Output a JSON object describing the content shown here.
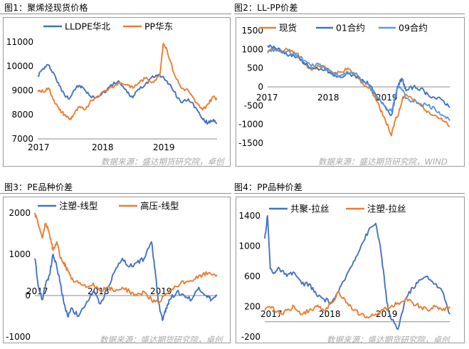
{
  "panels": [
    {
      "title": "图1：聚烯烃现货价格",
      "source": "数据来源：盛达期货研究院，卓创",
      "chart_data": {
        "type": "line",
        "title": "",
        "xlabel": "",
        "ylabel": "",
        "ylim": [
          7000,
          11000
        ],
        "yticks": [
          7000,
          8000,
          9000,
          10000,
          11000
        ],
        "xticks": [
          "2017",
          "2018",
          "2019"
        ],
        "legend_position": "top",
        "grid": false,
        "series": [
          {
            "name": "LLDPE华北",
            "color": "#4472C4",
            "x": [
              0,
              0.03,
              0.06,
              0.09,
              0.12,
              0.15,
              0.18,
              0.2,
              0.23,
              0.26,
              0.3,
              0.35,
              0.4,
              0.45,
              0.5,
              0.53,
              0.56,
              0.6,
              0.64,
              0.68,
              0.72,
              0.76,
              0.8,
              0.84,
              0.88,
              0.92,
              0.95,
              0.98,
              1.0
            ],
            "values": [
              9600,
              9900,
              10050,
              9700,
              9200,
              8800,
              8700,
              9000,
              9200,
              9050,
              8700,
              8800,
              9150,
              9400,
              8900,
              8700,
              9050,
              9250,
              9600,
              9650,
              9400,
              8950,
              8500,
              8650,
              8300,
              7800,
              7650,
              7800,
              7650
            ]
          },
          {
            "name": "PP华东",
            "color": "#ED7D31",
            "x": [
              0,
              0.03,
              0.06,
              0.09,
              0.12,
              0.15,
              0.18,
              0.2,
              0.23,
              0.26,
              0.3,
              0.35,
              0.4,
              0.45,
              0.5,
              0.53,
              0.56,
              0.6,
              0.64,
              0.68,
              0.7,
              0.72,
              0.76,
              0.8,
              0.84,
              0.88,
              0.92,
              0.95,
              0.98,
              1.0
            ],
            "values": [
              9000,
              8950,
              9100,
              8600,
              8200,
              8000,
              7800,
              8000,
              8300,
              8200,
              8600,
              8850,
              9100,
              9300,
              9250,
              9100,
              9300,
              9500,
              9350,
              9600,
              10950,
              10700,
              9700,
              9100,
              9000,
              8500,
              8200,
              8450,
              8750,
              8650
            ]
          }
        ]
      }
    },
    {
      "title": "图2：LL-PP价差",
      "source": "数据来源：盛达期货研究院，WIND",
      "chart_data": {
        "type": "line",
        "title": "",
        "xlabel": "",
        "ylabel": "",
        "ylim": [
          -1500,
          1500
        ],
        "yticks": [
          -1500,
          -1000,
          -500,
          0,
          500,
          1000,
          1500
        ],
        "xticks": [
          "2017",
          "2018",
          "2019"
        ],
        "legend_position": "top",
        "grid": false,
        "series": [
          {
            "name": "现货",
            "color": "#ED7D31",
            "x": [
              0,
              0.04,
              0.08,
              0.12,
              0.16,
              0.2,
              0.24,
              0.28,
              0.32,
              0.36,
              0.4,
              0.44,
              0.48,
              0.52,
              0.56,
              0.6,
              0.64,
              0.68,
              0.7,
              0.72,
              0.74,
              0.76,
              0.8,
              0.84,
              0.88,
              0.92,
              0.96,
              1.0
            ],
            "values": [
              900,
              1050,
              950,
              1000,
              900,
              600,
              450,
              550,
              500,
              350,
              400,
              500,
              300,
              100,
              0,
              -400,
              -800,
              -1300,
              -900,
              -700,
              -300,
              -200,
              -350,
              -500,
              -650,
              -750,
              -900,
              -1050
            ]
          },
          {
            "name": "01合约",
            "color": "#4472C4",
            "x": [
              0,
              0.04,
              0.08,
              0.12,
              0.16,
              0.2,
              0.24,
              0.28,
              0.32,
              0.36,
              0.4,
              0.44,
              0.48,
              0.52,
              0.56,
              0.6,
              0.64,
              0.68,
              0.7,
              0.72,
              0.74,
              0.76,
              0.8,
              0.84,
              0.88,
              0.92,
              0.96,
              1.0
            ],
            "values": [
              1100,
              1050,
              950,
              850,
              800,
              650,
              500,
              450,
              450,
              300,
              250,
              350,
              300,
              200,
              50,
              -300,
              -500,
              -750,
              -300,
              100,
              200,
              -100,
              0,
              -50,
              -200,
              -300,
              -350,
              -550
            ]
          },
          {
            "name": "09合约",
            "color": "#5B9BD5",
            "x": [
              0,
              0.04,
              0.08,
              0.12,
              0.16,
              0.2,
              0.24,
              0.28,
              0.32,
              0.36,
              0.4,
              0.44,
              0.48,
              0.52,
              0.56,
              0.6,
              0.64,
              0.68,
              0.7,
              0.72,
              0.74,
              0.76,
              0.8,
              0.84,
              0.88,
              0.92,
              0.96,
              1.0
            ],
            "values": [
              950,
              1000,
              900,
              950,
              850,
              700,
              550,
              600,
              500,
              350,
              300,
              400,
              350,
              150,
              0,
              -250,
              -500,
              -650,
              -200,
              50,
              -100,
              -300,
              -400,
              -450,
              -500,
              -600,
              -750,
              -900
            ]
          }
        ]
      }
    },
    {
      "title": "图3：PE品种价差",
      "source": "数据来源：盛达期货研究院，卓创",
      "chart_data": {
        "type": "line",
        "title": "",
        "xlabel": "",
        "ylabel": "",
        "ylim": [
          -1000,
          2000
        ],
        "yticks": [
          -1000,
          0,
          1000,
          2000
        ],
        "xticks": [
          "2017",
          "2018",
          "2019"
        ],
        "legend_position": "top",
        "grid": false,
        "series": [
          {
            "name": "注塑-线型",
            "color": "#4472C4",
            "x": [
              0,
              0.02,
              0.04,
              0.06,
              0.08,
              0.1,
              0.12,
              0.14,
              0.16,
              0.18,
              0.2,
              0.24,
              0.28,
              0.32,
              0.36,
              0.4,
              0.44,
              0.48,
              0.52,
              0.56,
              0.6,
              0.64,
              0.66,
              0.68,
              0.7,
              0.72,
              0.74,
              0.78,
              0.82,
              0.86,
              0.9,
              0.94,
              0.97,
              1.0
            ],
            "values": [
              900,
              200,
              -100,
              300,
              500,
              1000,
              700,
              300,
              -200,
              -500,
              -300,
              -500,
              -200,
              100,
              -200,
              200,
              600,
              900,
              700,
              800,
              900,
              1300,
              600,
              -200,
              -600,
              -300,
              -100,
              100,
              0,
              -100,
              200,
              0,
              -100,
              0
            ]
          },
          {
            "name": "高压-线型",
            "color": "#ED7D31",
            "x": [
              0,
              0.02,
              0.04,
              0.06,
              0.08,
              0.1,
              0.12,
              0.14,
              0.16,
              0.18,
              0.2,
              0.24,
              0.28,
              0.32,
              0.36,
              0.4,
              0.44,
              0.48,
              0.52,
              0.56,
              0.6,
              0.64,
              0.68,
              0.72,
              0.76,
              0.8,
              0.84,
              0.88,
              0.92,
              0.96,
              1.0
            ],
            "values": [
              2000,
              1700,
              1400,
              1750,
              1500,
              1100,
              1300,
              900,
              800,
              600,
              400,
              300,
              200,
              300,
              100,
              200,
              100,
              200,
              100,
              0,
              100,
              -100,
              -200,
              50,
              150,
              300,
              350,
              400,
              500,
              550,
              500
            ]
          }
        ]
      }
    },
    {
      "title": "图4：PP品种价差",
      "source": "数据来源：盛达期货研究院，卓创",
      "chart_data": {
        "type": "line",
        "title": "",
        "xlabel": "",
        "ylabel": "",
        "ylim": [
          -200,
          1400
        ],
        "yticks": [
          -200,
          200,
          600,
          1000,
          1400
        ],
        "xticks": [
          "2017",
          "2018",
          "2019"
        ],
        "legend_position": "top",
        "grid": false,
        "series": [
          {
            "name": "共聚-拉丝",
            "color": "#4472C4",
            "x": [
              0,
              0.015,
              0.03,
              0.05,
              0.08,
              0.12,
              0.16,
              0.2,
              0.24,
              0.28,
              0.32,
              0.36,
              0.4,
              0.44,
              0.48,
              0.52,
              0.56,
              0.6,
              0.62,
              0.64,
              0.66,
              0.68,
              0.72,
              0.76,
              0.8,
              0.84,
              0.88,
              0.92,
              0.96,
              1.0
            ],
            "values": [
              1100,
              1400,
              700,
              650,
              700,
              600,
              650,
              500,
              500,
              350,
              300,
              250,
              400,
              600,
              800,
              1000,
              1200,
              1300,
              1050,
              700,
              250,
              50,
              -100,
              300,
              450,
              550,
              600,
              500,
              400,
              100
            ]
          },
          {
            "name": "注塑-拉丝",
            "color": "#ED7D31",
            "x": [
              0,
              0.04,
              0.08,
              0.12,
              0.16,
              0.2,
              0.24,
              0.28,
              0.32,
              0.36,
              0.4,
              0.44,
              0.48,
              0.52,
              0.56,
              0.6,
              0.64,
              0.68,
              0.72,
              0.76,
              0.8,
              0.84,
              0.88,
              0.92,
              0.96,
              1.0
            ],
            "values": [
              150,
              200,
              100,
              150,
              200,
              100,
              150,
              200,
              150,
              250,
              400,
              250,
              150,
              100,
              50,
              100,
              150,
              200,
              250,
              300,
              250,
              200,
              150,
              200,
              150,
              200
            ]
          }
        ]
      }
    }
  ]
}
